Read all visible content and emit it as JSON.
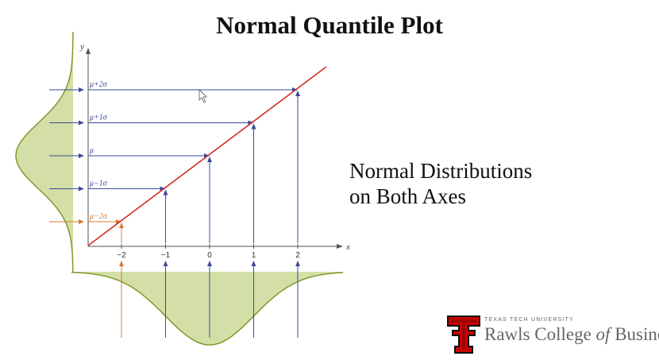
{
  "slide": {
    "title": "Normal Quantile Plot",
    "caption_line1": "Normal Distributions",
    "caption_line2": "on Both Axes"
  },
  "diagram": {
    "x_axis_label": "x",
    "y_axis_label": "y",
    "x_ticks": [
      {
        "value": -2,
        "label": "−2"
      },
      {
        "value": -1,
        "label": "−1"
      },
      {
        "value": 0,
        "label": "0"
      },
      {
        "value": 1,
        "label": "1"
      },
      {
        "value": 2,
        "label": "2"
      }
    ],
    "y_levels": [
      {
        "z": 2,
        "label": "μ+2σ"
      },
      {
        "z": 1,
        "label": "μ+1σ"
      },
      {
        "z": 0,
        "label": "μ"
      },
      {
        "z": -1,
        "label": "μ−1σ"
      },
      {
        "z": -2,
        "label": "μ−2σ"
      }
    ],
    "highlight_z": -2,
    "colors": {
      "line": "#d42a2a",
      "arrows": "#3a4a9a",
      "highlight": "#d9782d",
      "curve": "#7e9a2a",
      "fill": "#c4d488",
      "axes": "#555555"
    }
  },
  "logo": {
    "university": "TEXAS TECH UNIVERSITY",
    "college_pre": "Rawls College ",
    "college_of": "of",
    "college_post": " Business",
    "trademark": "™"
  }
}
